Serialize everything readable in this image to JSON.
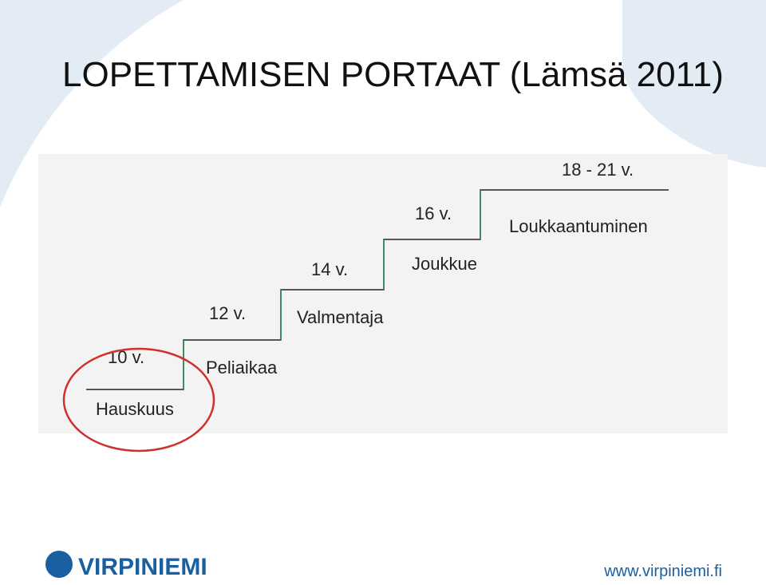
{
  "title": "LOPETTAMISEN PORTAAT (Lämsä 2011)",
  "steps": [
    {
      "age": "10 v.",
      "label": "Hauskuus"
    },
    {
      "age": "12 v.",
      "label": "Peliaikaa"
    },
    {
      "age": "14 v.",
      "label": "Valmentaja"
    },
    {
      "age": "16 v.",
      "label": "Joukkue"
    },
    {
      "age": "18 - 21 v.",
      "label": "Loukkaantuminen"
    }
  ],
  "footer": {
    "logo": "VIRPINIEMI",
    "url": "www.virpiniemi.fi"
  }
}
